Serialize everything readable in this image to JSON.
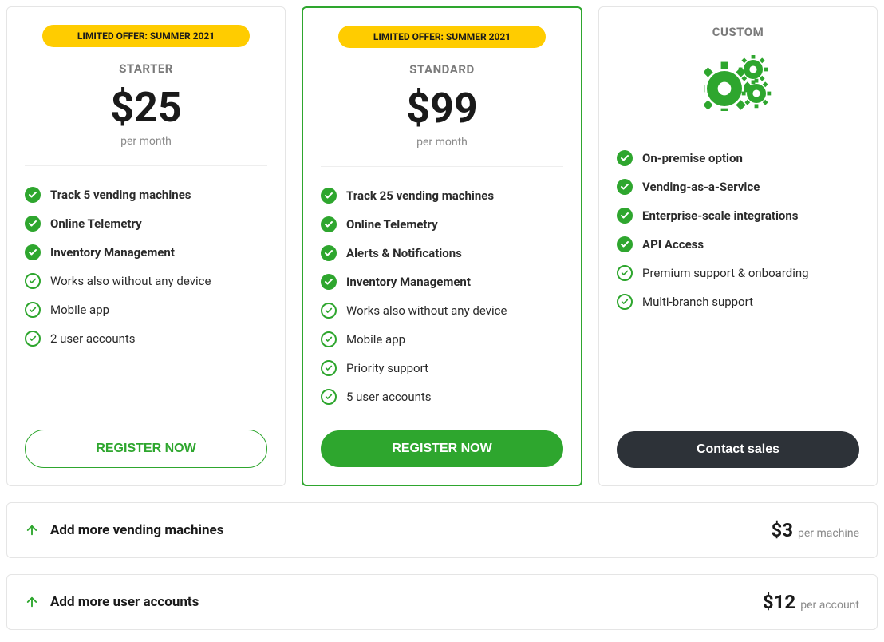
{
  "colors": {
    "accent_green": "#2ea62e",
    "badge_yellow": "#ffcc00",
    "text_dark": "#1a1a1a",
    "text_muted": "#8a8a8a",
    "border": "#e5e5e5",
    "cta_dark": "#2d3238",
    "white": "#ffffff"
  },
  "plans": [
    {
      "badge": "LIMITED OFFER: SUMMER 2021",
      "name": "STARTER",
      "price": "$25",
      "period": "per month",
      "featured": false,
      "cta_label": "REGISTER NOW",
      "cta_style": "outline",
      "features": [
        {
          "text": "Track 5 vending machines",
          "bold": true,
          "icon": "solid"
        },
        {
          "text": "Online Telemetry",
          "bold": true,
          "icon": "solid"
        },
        {
          "text": "Inventory Management",
          "bold": true,
          "icon": "solid"
        },
        {
          "text": "Works also without any device",
          "bold": false,
          "icon": "outline"
        },
        {
          "text": "Mobile app",
          "bold": false,
          "icon": "outline"
        },
        {
          "text": "2 user accounts",
          "bold": false,
          "icon": "outline"
        }
      ]
    },
    {
      "badge": "LIMITED OFFER: SUMMER 2021",
      "name": "STANDARD",
      "price": "$99",
      "period": "per month",
      "featured": true,
      "cta_label": "REGISTER NOW",
      "cta_style": "solid",
      "features": [
        {
          "text": "Track 25 vending machines",
          "bold": true,
          "icon": "solid"
        },
        {
          "text": "Online Telemetry",
          "bold": true,
          "icon": "solid"
        },
        {
          "text": "Alerts & Notifications",
          "bold": true,
          "icon": "solid"
        },
        {
          "text": "Inventory Management",
          "bold": true,
          "icon": "solid"
        },
        {
          "text": "Works also without any device",
          "bold": false,
          "icon": "outline"
        },
        {
          "text": "Mobile app",
          "bold": false,
          "icon": "outline"
        },
        {
          "text": "Priority support",
          "bold": false,
          "icon": "outline"
        },
        {
          "text": "5 user accounts",
          "bold": false,
          "icon": "outline"
        }
      ]
    },
    {
      "badge": null,
      "name": "CUSTOM",
      "price": null,
      "period": null,
      "featured": false,
      "icon": "gears",
      "cta_label": "Contact sales",
      "cta_style": "dark",
      "features": [
        {
          "text": "On-premise option",
          "bold": true,
          "icon": "solid"
        },
        {
          "text": "Vending-as-a-Service",
          "bold": true,
          "icon": "solid"
        },
        {
          "text": "Enterprise-scale integrations",
          "bold": true,
          "icon": "solid"
        },
        {
          "text": "API Access",
          "bold": true,
          "icon": "solid"
        },
        {
          "text": "Premium support & onboarding",
          "bold": false,
          "icon": "outline"
        },
        {
          "text": "Multi-branch support",
          "bold": false,
          "icon": "outline"
        }
      ]
    }
  ],
  "addons": [
    {
      "title": "Add more vending machines",
      "price": "$3",
      "unit": "per machine"
    },
    {
      "title": "Add more user accounts",
      "price": "$12",
      "unit": "per account"
    }
  ]
}
